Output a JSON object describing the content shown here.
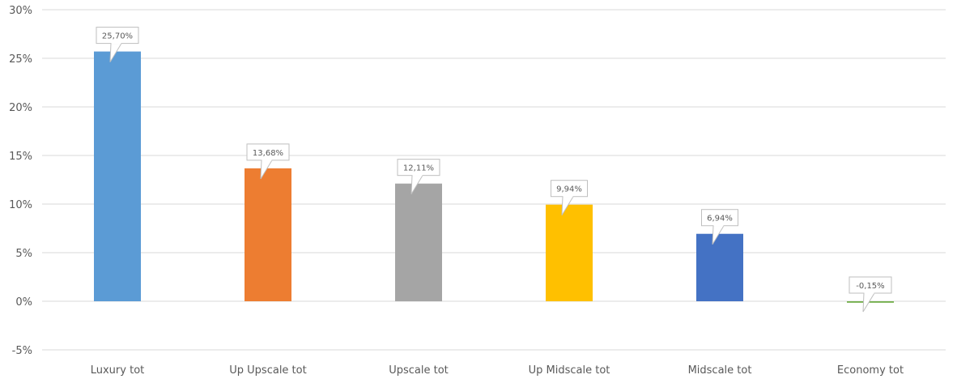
{
  "chart_data": {
    "type": "bar",
    "categories": [
      "Luxury tot",
      "Up Upscale tot",
      "Upscale tot",
      "Up Midscale tot",
      "Midscale tot",
      "Economy tot"
    ],
    "values": [
      25.7,
      13.68,
      12.11,
      9.94,
      6.94,
      -0.15
    ],
    "data_labels": [
      "25,70%",
      "13,68%",
      "12,11%",
      "9,94%",
      "6,94%",
      "-0,15%"
    ],
    "colors": [
      "#5B9BD5",
      "#ED7D31",
      "#A5A5A5",
      "#FFC000",
      "#4472C4",
      "#70AD47"
    ],
    "y_ticks": [
      {
        "value": 30,
        "label": "30%"
      },
      {
        "value": 25,
        "label": "25%"
      },
      {
        "value": 20,
        "label": "20%"
      },
      {
        "value": 15,
        "label": "15%"
      },
      {
        "value": 10,
        "label": "10%"
      },
      {
        "value": 5,
        "label": "5%"
      },
      {
        "value": 0,
        "label": "0%"
      },
      {
        "value": -5,
        "label": "-5%"
      }
    ],
    "ylim": [
      -5,
      30
    ],
    "grid": true,
    "title": "",
    "xlabel": "",
    "ylabel": ""
  }
}
